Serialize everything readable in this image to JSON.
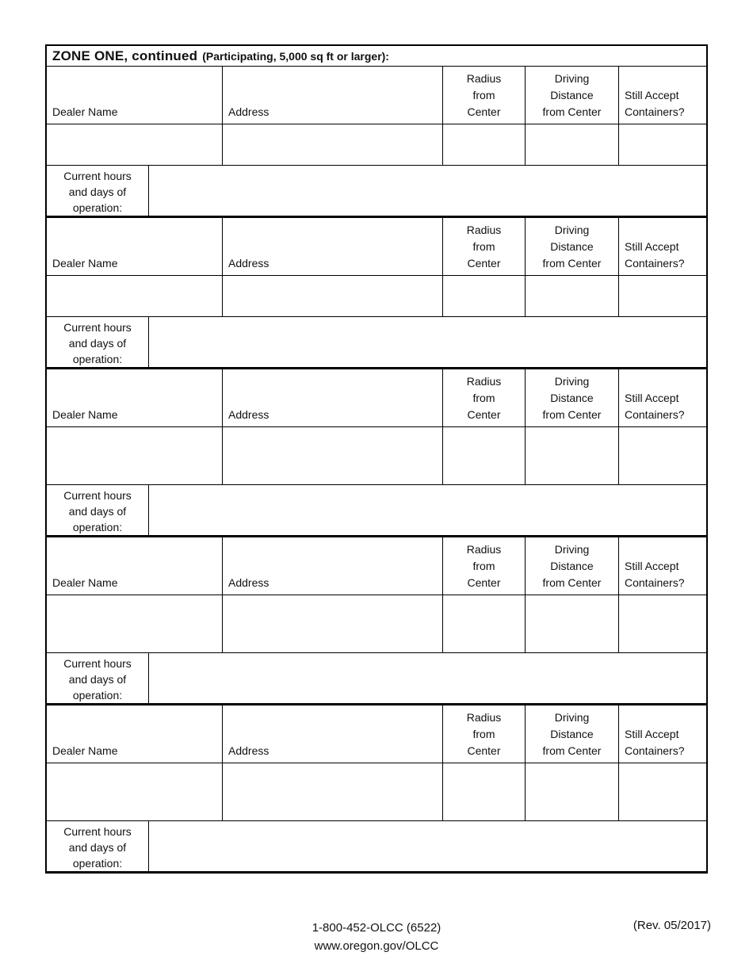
{
  "title": {
    "main": "ZONE ONE, continued",
    "qualifier": "(Participating, 5,000 sq ft or larger):"
  },
  "columns": {
    "dealer_name": "Dealer Name",
    "address": "Address",
    "radius_from_center": "Radius\nfrom\nCenter",
    "driving_distance": "Driving\nDistance\nfrom Center",
    "still_accept": "Still Accept\nContainers?"
  },
  "hours_label": "Current hours\nand days of\noperation:",
  "blocks": [
    {
      "dealer_name": "",
      "address": "",
      "radius_from_center": "",
      "driving_distance": "",
      "still_accept": "",
      "hours": ""
    },
    {
      "dealer_name": "",
      "address": "",
      "radius_from_center": "",
      "driving_distance": "",
      "still_accept": "",
      "hours": ""
    },
    {
      "dealer_name": "",
      "address": "",
      "radius_from_center": "",
      "driving_distance": "",
      "still_accept": "",
      "hours": ""
    },
    {
      "dealer_name": "",
      "address": "",
      "radius_from_center": "",
      "driving_distance": "",
      "still_accept": "",
      "hours": ""
    },
    {
      "dealer_name": "",
      "address": "",
      "radius_from_center": "",
      "driving_distance": "",
      "still_accept": "",
      "hours": ""
    }
  ],
  "footer": {
    "phone": "1-800-452-OLCC (6522)",
    "website": "www.oregon.gov/OLCC",
    "revision": "(Rev. 05/2017)"
  }
}
